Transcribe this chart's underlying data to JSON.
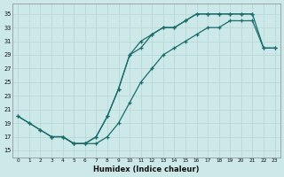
{
  "xlabel": "Humidex (Indice chaleur)",
  "bg_color": "#cce8e8",
  "grid_color": "#b8d8d8",
  "line_color": "#1a6b6b",
  "line1_x": [
    0,
    1,
    2,
    3,
    4,
    5,
    6,
    7,
    8,
    9,
    10,
    11,
    12,
    13,
    14,
    15,
    16,
    17,
    18,
    19,
    20,
    21
  ],
  "line1_y": [
    20,
    19,
    18,
    17,
    17,
    16,
    16,
    17,
    20,
    24,
    29,
    30,
    32,
    33,
    33,
    34,
    35,
    35,
    35,
    35,
    35,
    35
  ],
  "line2_x": [
    0,
    1,
    2,
    3,
    4,
    5,
    6,
    7,
    8,
    9,
    10,
    11,
    12,
    13,
    14,
    15,
    16,
    17,
    18,
    19,
    20,
    21,
    22,
    23
  ],
  "line2_y": [
    20,
    19,
    18,
    17,
    17,
    16,
    16,
    17,
    20,
    24,
    29,
    31,
    32,
    33,
    33,
    34,
    35,
    35,
    35,
    35,
    35,
    35,
    30,
    30
  ],
  "line3_x": [
    3,
    4,
    5,
    6,
    7,
    8,
    9,
    10,
    11,
    12,
    13,
    14,
    15,
    16,
    17,
    18,
    19,
    20,
    21,
    22,
    23
  ],
  "line3_y": [
    17,
    17,
    16,
    16,
    16,
    17,
    19,
    22,
    25,
    27,
    29,
    30,
    31,
    32,
    33,
    33,
    34,
    34,
    34,
    30,
    30
  ],
  "xlim": [
    -0.5,
    23.5
  ],
  "ylim": [
    14,
    36.5
  ],
  "yticks": [
    15,
    17,
    19,
    21,
    23,
    25,
    27,
    29,
    31,
    33,
    35
  ],
  "xticks": [
    0,
    1,
    2,
    3,
    4,
    5,
    6,
    7,
    8,
    9,
    10,
    11,
    12,
    13,
    14,
    15,
    16,
    17,
    18,
    19,
    20,
    21,
    22,
    23
  ]
}
